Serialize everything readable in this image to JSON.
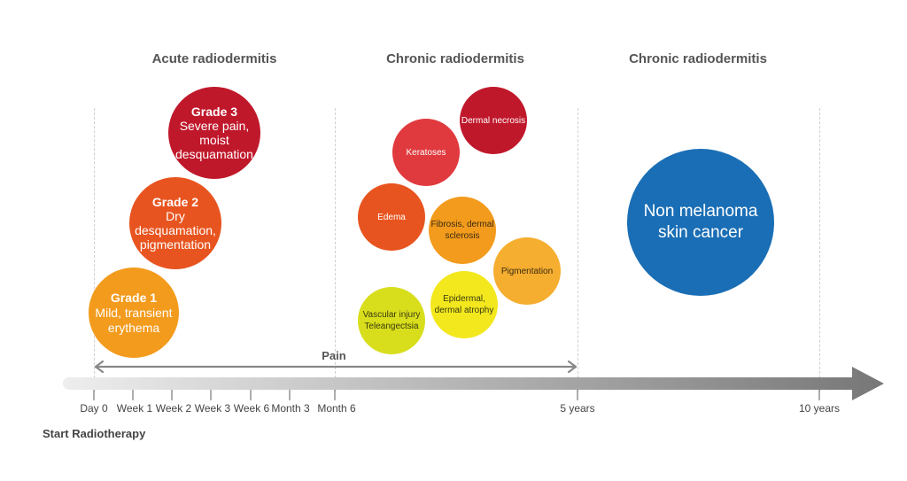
{
  "sections": [
    {
      "title": "Acute radiodermitis"
    },
    {
      "title": "Chronic radiodermitis"
    },
    {
      "title": "Chronic radiodermitis"
    }
  ],
  "colors": {
    "grade1": "#f39b1d",
    "grade2": "#e8541f",
    "grade3": "#c0182b",
    "red": "#e03a3e",
    "dark_red": "#c0182b",
    "orange_red": "#e8541f",
    "orange": "#f39b1d",
    "light_orange": "#f6ae30",
    "yellow": "#f3e81e",
    "yellow_green": "#d8de1c",
    "blue": "#1a6eb5",
    "axis_gray": "#777777"
  },
  "grades": [
    {
      "title": "Grade 1",
      "lines": [
        "Mild, transient",
        "erythema"
      ]
    },
    {
      "title": "Grade 2",
      "lines": [
        "Dry",
        "desquamation,",
        "pigmentation"
      ]
    },
    {
      "title": "Grade 3",
      "lines": [
        "Severe pain,",
        "moist",
        "desquamation"
      ]
    }
  ],
  "chronic_effects": [
    {
      "lines": [
        "Dermal necrosis"
      ]
    },
    {
      "lines": [
        "Keratoses"
      ]
    },
    {
      "lines": [
        "Edema"
      ]
    },
    {
      "lines": [
        "Fibrosis, dermal",
        "sclerosis"
      ]
    },
    {
      "lines": [
        "Pigmentation"
      ]
    },
    {
      "lines": [
        "Epidermal,",
        "dermal atrophy"
      ]
    },
    {
      "lines": [
        "Vascular injury",
        "Teleangectsia"
      ]
    }
  ],
  "late_effect": {
    "lines": [
      "Non melanoma",
      "skin cancer"
    ]
  },
  "pain": {
    "label": "Pain"
  },
  "axis": {
    "ticks": [
      "Day 0",
      "Week 1",
      "Week 2",
      "Week 3",
      "Week 6",
      "Month 3",
      "Month 6",
      "5 years",
      "10 years"
    ],
    "start_label": "Start Radiotherapy"
  }
}
